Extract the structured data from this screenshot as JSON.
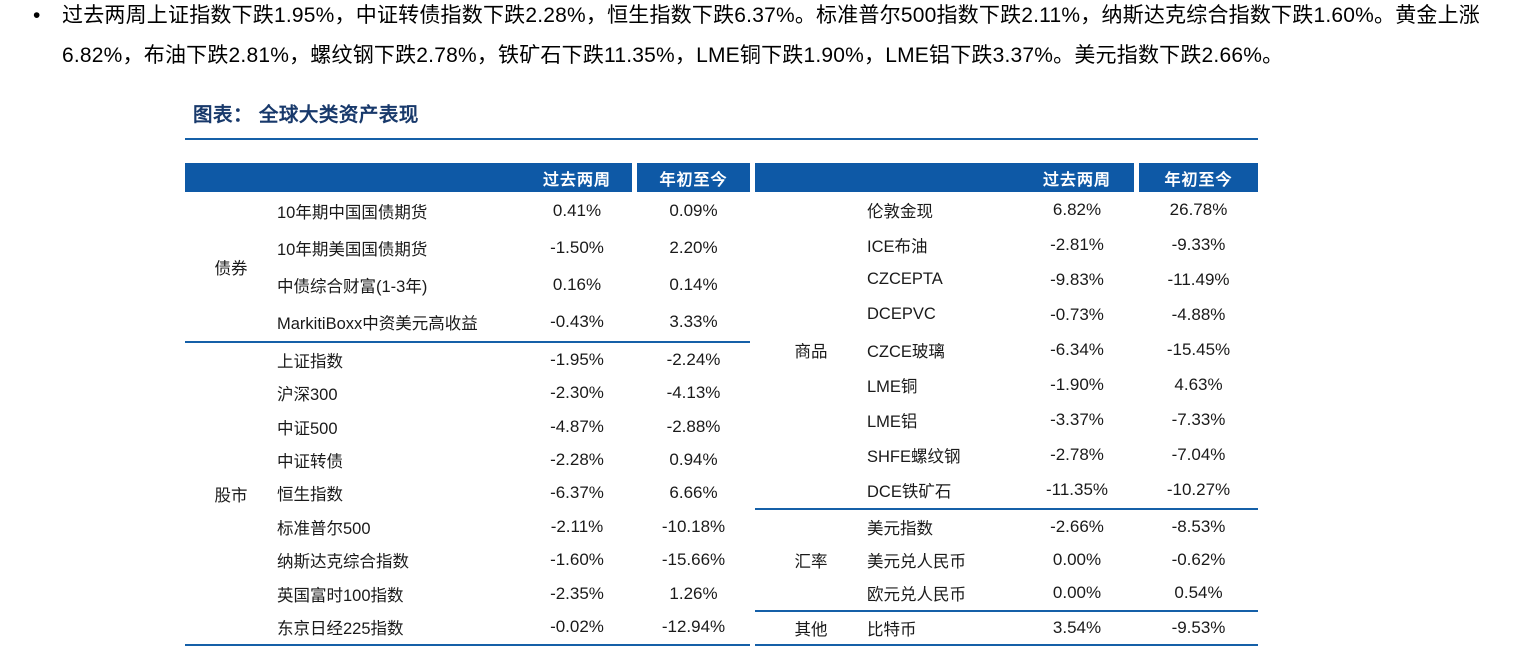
{
  "summary": {
    "bullet": "•",
    "lines": [
      "过去两周上证指数下跌1.95%，中证转债指数下跌2.28%，恒生指数下跌6.37%。标准普尔500指数下跌2.11%，纳斯达克综合指数下跌1.60%。黄金上涨",
      "6.82%，布油下跌2.81%，螺纹钢下跌2.78%，铁矿石下跌11.35%，LME铜下跌1.90%，LME铝下跌3.37%。美元指数下跌2.66%。"
    ]
  },
  "figure": {
    "title": "图表： 全球大类资产表现",
    "col_headers": {
      "two_week": "过去两周",
      "ytd": "年初至今"
    },
    "colors": {
      "header_bg": "#0E59A6",
      "rule_blue": "#1560A8",
      "title_navy": "#18396B"
    },
    "left_sections": [
      {
        "category": "债券",
        "rows": [
          {
            "name": "10年期中国国债期货",
            "two_week": "0.41%",
            "ytd": "0.09%"
          },
          {
            "name": "10年期美国国债期货",
            "two_week": "-1.50%",
            "ytd": "2.20%"
          },
          {
            "name": "中债综合财富(1-3年)",
            "two_week": "0.16%",
            "ytd": "0.14%"
          },
          {
            "name": "MarkitiBoxx中资美元高收益",
            "two_week": "-0.43%",
            "ytd": "3.33%"
          }
        ]
      },
      {
        "category": "股市",
        "rows": [
          {
            "name": "上证指数",
            "two_week": "-1.95%",
            "ytd": "-2.24%"
          },
          {
            "name": "沪深300",
            "two_week": "-2.30%",
            "ytd": "-4.13%"
          },
          {
            "name": "中证500",
            "two_week": "-4.87%",
            "ytd": "-2.88%"
          },
          {
            "name": "中证转债",
            "two_week": "-2.28%",
            "ytd": "0.94%"
          },
          {
            "name": "恒生指数",
            "two_week": "-6.37%",
            "ytd": "6.66%"
          },
          {
            "name": "标准普尔500",
            "two_week": "-2.11%",
            "ytd": "-10.18%"
          },
          {
            "name": "纳斯达克综合指数",
            "two_week": "-1.60%",
            "ytd": "-15.66%"
          },
          {
            "name": "英国富时100指数",
            "two_week": "-2.35%",
            "ytd": "1.26%"
          },
          {
            "name": "东京日经225指数",
            "two_week": "-0.02%",
            "ytd": "-12.94%"
          }
        ]
      }
    ],
    "right_sections": [
      {
        "category": "商品",
        "rows": [
          {
            "name": "伦敦金现",
            "two_week": "6.82%",
            "ytd": "26.78%"
          },
          {
            "name": "ICE布油",
            "two_week": "-2.81%",
            "ytd": "-9.33%"
          },
          {
            "name": "CZCEPTA",
            "two_week": "-9.83%",
            "ytd": "-11.49%"
          },
          {
            "name": "DCEPVC",
            "two_week": "-0.73%",
            "ytd": "-4.88%"
          },
          {
            "name": "CZCE玻璃",
            "two_week": "-6.34%",
            "ytd": "-15.45%"
          },
          {
            "name": "LME铜",
            "two_week": "-1.90%",
            "ytd": "4.63%"
          },
          {
            "name": "LME铝",
            "two_week": "-3.37%",
            "ytd": "-7.33%"
          },
          {
            "name": "SHFE螺纹钢",
            "two_week": "-2.78%",
            "ytd": "-7.04%"
          },
          {
            "name": "DCE铁矿石",
            "two_week": "-11.35%",
            "ytd": "-10.27%"
          }
        ]
      },
      {
        "category": "汇率",
        "rows": [
          {
            "name": "美元指数",
            "two_week": "-2.66%",
            "ytd": "-8.53%"
          },
          {
            "name": "美元兑人民币",
            "two_week": "0.00%",
            "ytd": "-0.62%"
          },
          {
            "name": "欧元兑人民币",
            "two_week": "0.00%",
            "ytd": "0.54%"
          }
        ]
      },
      {
        "category": "其他",
        "rows": [
          {
            "name": "比特币",
            "two_week": "3.54%",
            "ytd": "-9.53%"
          }
        ]
      }
    ]
  }
}
